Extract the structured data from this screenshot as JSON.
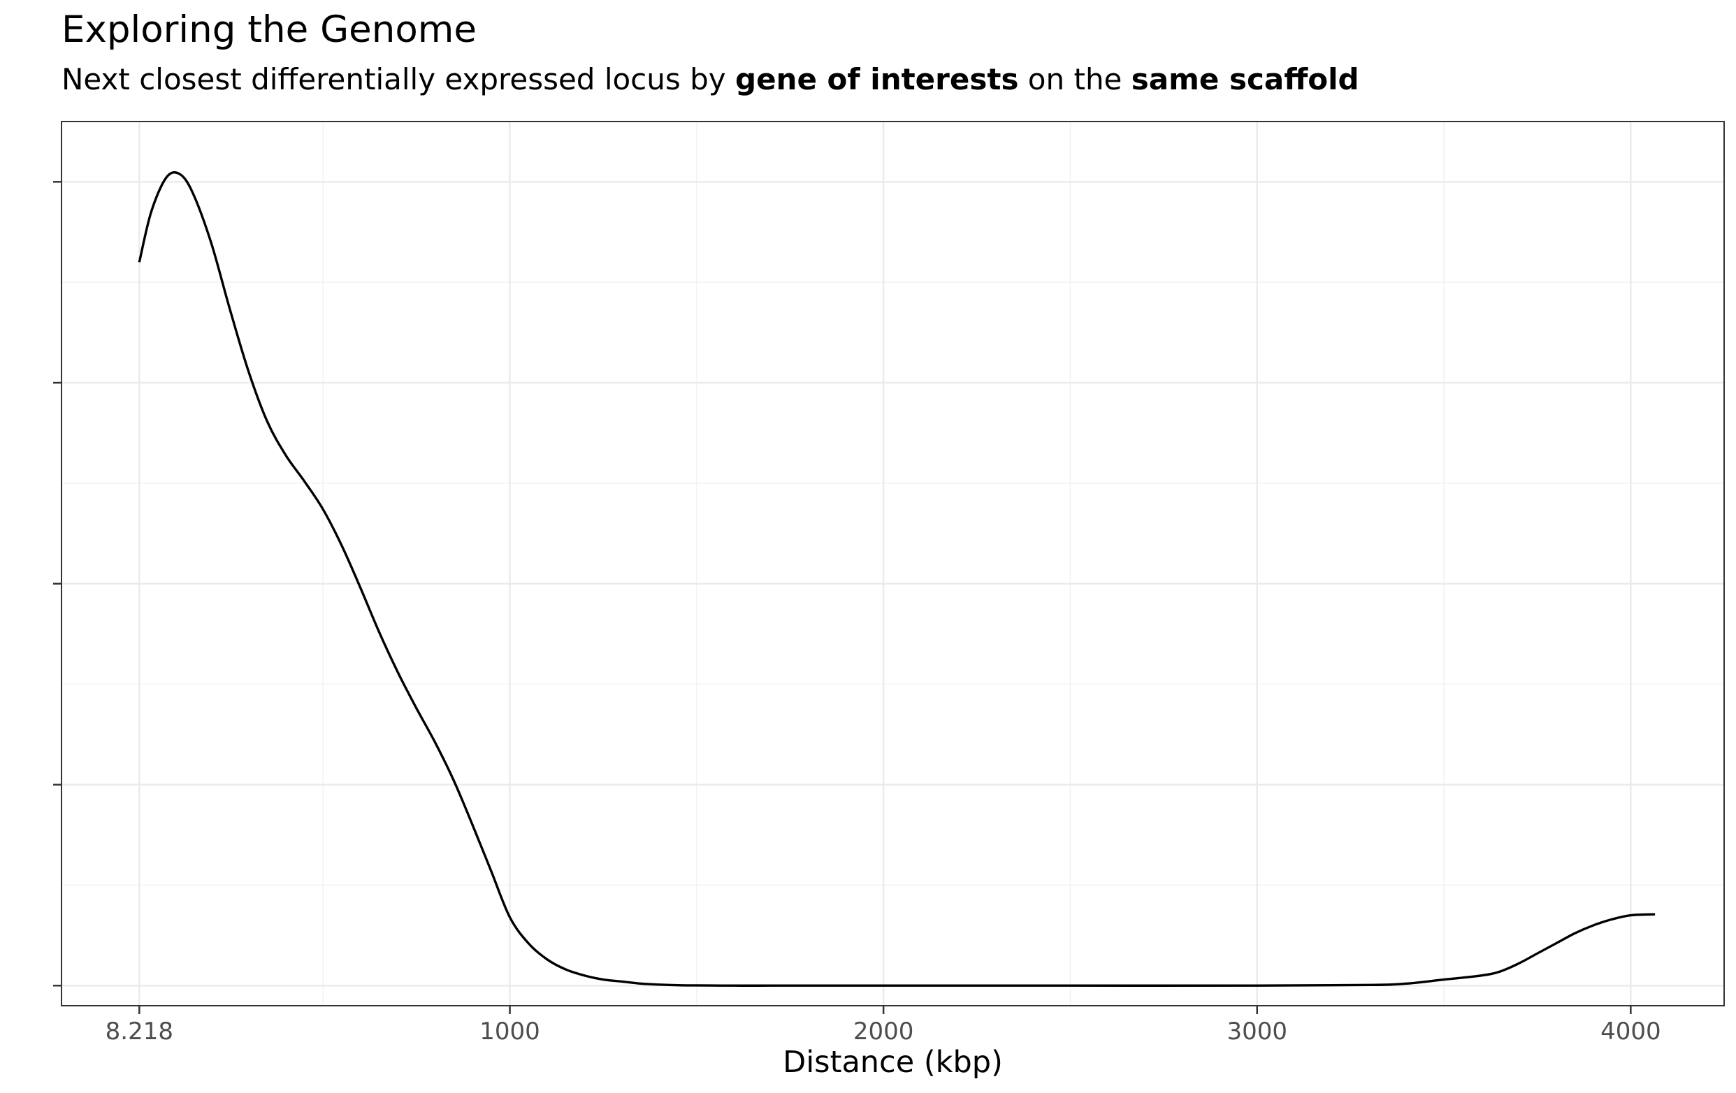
{
  "chart_data": {
    "type": "line",
    "title": "Exploring the Genome",
    "subtitle": {
      "part1": "Next closest differentially expressed locus by ",
      "bold1": "gene of interests",
      "part2": " on the ",
      "bold2": "same scaffold"
    },
    "xlabel": "Distance (kbp)",
    "ylabel": "",
    "xlim": [
      -200,
      4250
    ],
    "ylim": [
      -0.1,
      4.3
    ],
    "x_ticks": [
      {
        "value": 8.218,
        "label": "8.218"
      },
      {
        "value": 1000,
        "label": "1000"
      },
      {
        "value": 2000,
        "label": "2000"
      },
      {
        "value": 3000,
        "label": "3000"
      },
      {
        "value": 4000,
        "label": "4000"
      }
    ],
    "x_minor_grid": [
      500,
      1500,
      2500,
      3500
    ],
    "y_ticks": [
      0,
      1,
      2,
      3,
      4
    ],
    "y_tick_labels_shown": false,
    "y_minor_grid": [
      0.5,
      1.5,
      2.5,
      3.5
    ],
    "grid": true,
    "series": [
      {
        "line_color": "#000000",
        "x": [
          8.218,
          40,
          80,
          115,
          150,
          200,
          250,
          300,
          350,
          400,
          450,
          500,
          550,
          600,
          650,
          700,
          750,
          800,
          850,
          900,
          950,
          1000,
          1050,
          1100,
          1150,
          1200,
          1250,
          1300,
          1350,
          1400,
          1450,
          1500,
          1600,
          1700,
          1800,
          2000,
          2500,
          3000,
          3300,
          3400,
          3500,
          3600,
          3650,
          3700,
          3750,
          3800,
          3850,
          3900,
          3950,
          4000,
          4065
        ],
        "y": [
          3.6,
          3.85,
          4.02,
          4.04,
          3.95,
          3.7,
          3.37,
          3.06,
          2.81,
          2.64,
          2.51,
          2.37,
          2.19,
          1.98,
          1.76,
          1.56,
          1.38,
          1.21,
          1.02,
          0.8,
          0.57,
          0.34,
          0.21,
          0.13,
          0.08,
          0.05,
          0.03,
          0.02,
          0.01,
          0.005,
          0.002,
          0.001,
          0,
          0,
          0,
          0,
          0,
          0,
          0.003,
          0.01,
          0.03,
          0.05,
          0.07,
          0.11,
          0.16,
          0.21,
          0.26,
          0.3,
          0.33,
          0.35,
          0.355
        ]
      }
    ]
  }
}
